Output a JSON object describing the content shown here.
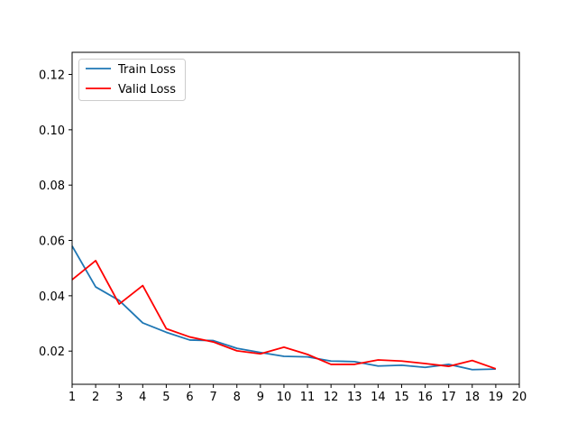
{
  "chart_data": {
    "type": "line",
    "title": "",
    "xlabel": "",
    "ylabel": "",
    "xlim": [
      1,
      20
    ],
    "ylim": [
      0.008,
      0.128
    ],
    "x_ticks": [
      "1",
      "2",
      "3",
      "4",
      "5",
      "6",
      "7",
      "8",
      "9",
      "10",
      "11",
      "12",
      "13",
      "14",
      "15",
      "16",
      "17",
      "18",
      "19",
      "20"
    ],
    "y_ticks": [
      "0.02",
      "0.04",
      "0.06",
      "0.08",
      "0.10",
      "0.12"
    ],
    "grid": false,
    "legend_position": "top-left",
    "series": [
      {
        "name": "Train Loss",
        "color": "#1f77b4",
        "x": [
          1,
          2,
          3,
          4,
          5,
          6,
          7,
          8,
          9,
          10,
          11,
          12,
          13,
          14,
          15,
          16,
          17,
          18,
          19
        ],
        "values": [
          0.058,
          0.0432,
          0.0383,
          0.0302,
          0.0268,
          0.024,
          0.0238,
          0.021,
          0.0195,
          0.0181,
          0.0179,
          0.0164,
          0.0162,
          0.0146,
          0.0149,
          0.0141,
          0.0152,
          0.0133,
          0.0135
        ]
      },
      {
        "name": "Valid Loss",
        "color": "#ff0000",
        "x": [
          1,
          2,
          3,
          4,
          5,
          6,
          7,
          8,
          9,
          10,
          11,
          12,
          13,
          14,
          15,
          16,
          17,
          18,
          19
        ],
        "values": [
          0.0458,
          0.0527,
          0.037,
          0.0437,
          0.0281,
          0.0251,
          0.0233,
          0.0201,
          0.019,
          0.0214,
          0.0188,
          0.0152,
          0.0152,
          0.0168,
          0.0164,
          0.0155,
          0.0145,
          0.0166,
          0.0136
        ]
      }
    ]
  }
}
